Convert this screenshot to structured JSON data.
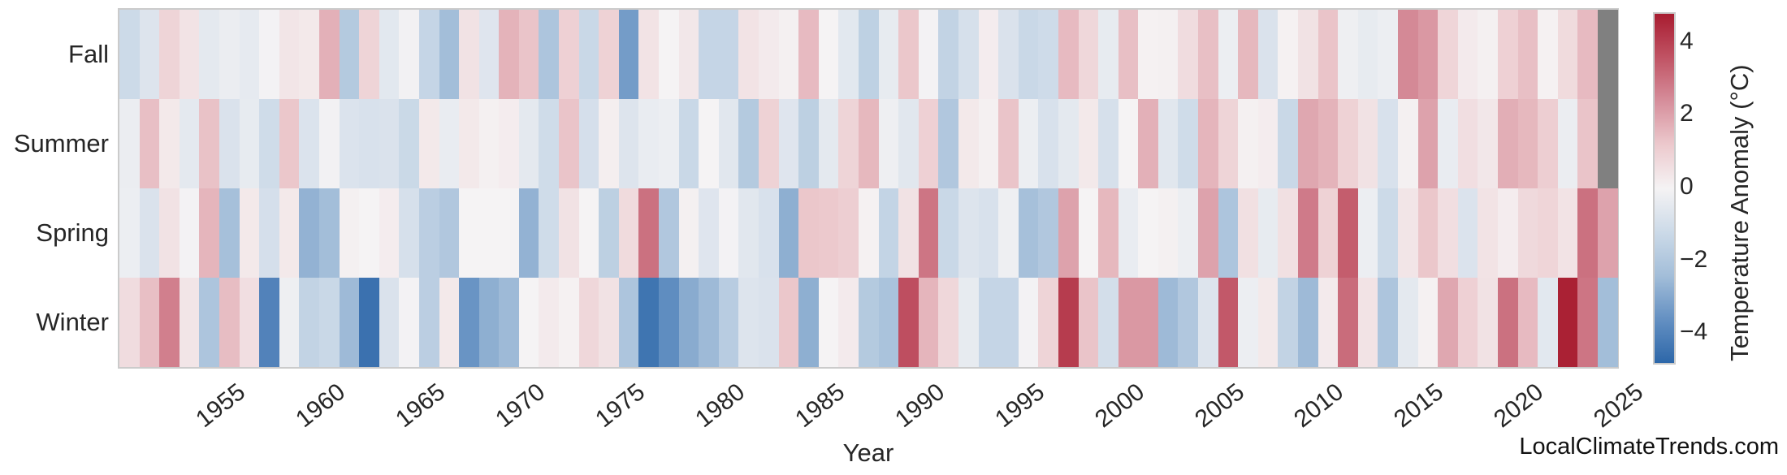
{
  "page": {
    "background": "#ffffff"
  },
  "watermark": {
    "text": "LocalClimateTrends.com"
  },
  "chart_data": {
    "type": "heatmap",
    "title": "",
    "xlabel": "Year",
    "ylabel": "",
    "colorbar_label": "Temperature Anomaly (°C)",
    "colorbar_ticks": [
      {
        "label": "4",
        "value": 4
      },
      {
        "label": "2",
        "value": 2
      },
      {
        "label": "0",
        "value": 0
      },
      {
        "label": "−2",
        "value": -2
      },
      {
        "label": "−4",
        "value": -4
      }
    ],
    "vmin": -4.8,
    "vmax": 4.8,
    "missing_color": "#808080",
    "grid": false,
    "legend_position": "right-colorbar",
    "colormap_stops": [
      {
        "t": -1.0,
        "color": "#2d67a9"
      },
      {
        "t": -0.75,
        "color": "#6490c2"
      },
      {
        "t": -0.5,
        "color": "#a3bed9"
      },
      {
        "t": -0.25,
        "color": "#ccdae8"
      },
      {
        "t": 0.0,
        "color": "#f5f3f4"
      },
      {
        "t": 0.25,
        "color": "#ecc9cd"
      },
      {
        "t": 0.5,
        "color": "#d68e9b"
      },
      {
        "t": 0.75,
        "color": "#c05364"
      },
      {
        "t": 1.0,
        "color": "#a81c30"
      }
    ],
    "x_ticks": [
      1955,
      1960,
      1965,
      1970,
      1975,
      1980,
      1985,
      1990,
      1995,
      2000,
      2005,
      2010,
      2015,
      2020,
      2025
    ],
    "years": [
      1950,
      1951,
      1952,
      1953,
      1954,
      1955,
      1956,
      1957,
      1958,
      1959,
      1960,
      1961,
      1962,
      1963,
      1964,
      1965,
      1966,
      1967,
      1968,
      1969,
      1970,
      1971,
      1972,
      1973,
      1974,
      1975,
      1976,
      1977,
      1978,
      1979,
      1980,
      1981,
      1982,
      1983,
      1984,
      1985,
      1986,
      1987,
      1988,
      1989,
      1990,
      1991,
      1992,
      1993,
      1994,
      1995,
      1996,
      1997,
      1998,
      1999,
      2000,
      2001,
      2002,
      2003,
      2004,
      2005,
      2006,
      2007,
      2008,
      2009,
      2010,
      2011,
      2012,
      2013,
      2014,
      2015,
      2016,
      2017,
      2018,
      2019,
      2020,
      2021,
      2022,
      2023,
      2024
    ],
    "rows": [
      {
        "name": "Fall",
        "values": [
          -1.2,
          -0.7,
          0.9,
          0.45,
          -0.5,
          -0.3,
          -0.45,
          -0.05,
          0.4,
          0.3,
          1.7,
          -1.9,
          0.9,
          -0.55,
          -0.1,
          -1.4,
          -2.4,
          0.5,
          -0.65,
          1.65,
          1.3,
          -2.1,
          1.0,
          -1.3,
          0.95,
          -3.3,
          0.45,
          0.0,
          0.35,
          -1.4,
          -1.4,
          0.45,
          0.25,
          0.1,
          1.5,
          0.0,
          -0.55,
          -1.6,
          -0.4,
          1.25,
          -0.05,
          -1.5,
          -0.9,
          0.2,
          -0.8,
          -1.3,
          -1.15,
          1.5,
          0.8,
          -0.4,
          1.4,
          0.05,
          0.1,
          0.65,
          1.4,
          -0.25,
          1.55,
          -0.8,
          0.05,
          0.5,
          1.3,
          -0.2,
          -0.4,
          -0.25,
          2.5,
          2.2,
          0.85,
          0.25,
          0.1,
          1.0,
          1.4,
          0.05,
          0.7,
          1.5,
          null
        ]
      },
      {
        "name": "Summer",
        "values": [
          -0.3,
          1.4,
          0.3,
          -0.5,
          1.35,
          -0.8,
          -0.4,
          -1.1,
          1.25,
          -0.75,
          -0.1,
          -0.75,
          -0.85,
          -0.8,
          -1.25,
          0.3,
          -0.35,
          0.3,
          0.1,
          0.2,
          -0.5,
          -1.1,
          1.3,
          -0.95,
          0.15,
          -0.7,
          -0.35,
          -0.25,
          -1.3,
          0.0,
          -0.6,
          -1.9,
          0.95,
          -0.65,
          -1.65,
          -0.5,
          0.9,
          1.55,
          -0.2,
          -0.6,
          1.0,
          -2.0,
          0.3,
          0.1,
          1.3,
          -0.25,
          -0.85,
          -0.5,
          0.3,
          -0.9,
          0.0,
          1.7,
          -0.6,
          -1.1,
          1.6,
          0.9,
          0.1,
          0.2,
          -1.3,
          1.9,
          1.65,
          0.95,
          0.5,
          -0.85,
          0.1,
          2.0,
          -0.35,
          0.6,
          0.35,
          1.75,
          1.55,
          1.05,
          -0.3,
          1.3,
          null
        ]
      },
      {
        "name": "Spring",
        "values": [
          -0.25,
          -0.8,
          0.5,
          -0.05,
          1.6,
          -2.3,
          0.3,
          -0.95,
          0.3,
          -2.7,
          -2.4,
          0.1,
          0.0,
          0.2,
          -0.9,
          -1.7,
          -2.0,
          0.0,
          0.0,
          0.0,
          -2.7,
          -1.1,
          0.5,
          0.0,
          -1.65,
          0.7,
          3.0,
          -2.0,
          0.1,
          -0.65,
          -0.05,
          -0.6,
          -0.85,
          -2.8,
          1.25,
          1.2,
          1.05,
          0.05,
          -1.45,
          0.5,
          2.9,
          -1.3,
          -0.7,
          -0.85,
          -0.2,
          -2.3,
          -2.0,
          2.0,
          0.0,
          1.55,
          -0.35,
          0.0,
          0.1,
          -0.25,
          2.0,
          -2.1,
          0.55,
          -0.4,
          0.55,
          2.8,
          0.95,
          3.4,
          -0.25,
          -1.2,
          0.4,
          1.25,
          0.6,
          -0.75,
          0.45,
          0.2,
          0.75,
          0.85,
          0.45,
          3.0,
          2.0
        ]
      },
      {
        "name": "Winter",
        "values": [
          0.65,
          1.4,
          2.7,
          0.4,
          -2.1,
          1.45,
          0.6,
          -4.0,
          -0.2,
          -1.5,
          -1.3,
          -2.5,
          -4.5,
          -0.8,
          -0.05,
          -1.7,
          0.3,
          -3.5,
          -2.8,
          -2.5,
          0.0,
          0.25,
          0.05,
          0.8,
          0.5,
          -2.1,
          -4.4,
          -3.7,
          -2.9,
          -2.5,
          -1.8,
          -0.7,
          -0.8,
          1.25,
          -2.8,
          0.0,
          0.25,
          -1.9,
          -2.2,
          3.7,
          1.6,
          0.8,
          -0.4,
          -1.4,
          -1.4,
          -0.05,
          0.9,
          4.1,
          1.3,
          -1.0,
          2.2,
          2.2,
          -2.5,
          -2.0,
          -0.7,
          3.5,
          -0.25,
          0.3,
          -1.5,
          -2.5,
          0.25,
          3.1,
          0.45,
          -2.1,
          -0.5,
          0.05,
          1.9,
          1.0,
          0.5,
          3.0,
          1.5,
          -0.55,
          4.7,
          2.9,
          -2.4
        ]
      }
    ]
  }
}
